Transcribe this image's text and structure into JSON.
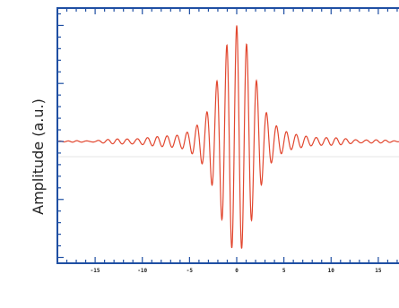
{
  "colors": {
    "axis": "#1f4fa3",
    "trace": "#e2472f"
  },
  "chart_data": {
    "type": "line",
    "title": "",
    "xlabel": "",
    "ylabel": "Amplitude (a.u.)",
    "xlim": [
      -19,
      19
    ],
    "ylim": [
      -1.05,
      1.15
    ],
    "x_ticks": [
      "-15",
      "-10",
      "-5",
      "0",
      "5",
      "10",
      "15"
    ],
    "x_tick_values": [
      -15,
      -10,
      -5,
      0,
      5,
      10,
      15
    ],
    "grid": false,
    "legend": "none",
    "series": [
      {
        "name": "",
        "envelope_peak": 1.0,
        "envelope_width": 2.6,
        "oscillation_frequency": 0.95,
        "x": [
          -18,
          -15,
          -12,
          -10,
          -8,
          -6,
          -5,
          -4,
          -3,
          -2,
          -1,
          0,
          1,
          2,
          3,
          4,
          5,
          6,
          8,
          10,
          12,
          15,
          18
        ],
        "y": [
          0.0,
          0.01,
          0.02,
          0.03,
          0.04,
          0.06,
          0.09,
          0.15,
          0.27,
          0.55,
          0.85,
          1.0,
          0.85,
          0.55,
          0.27,
          0.15,
          0.09,
          0.06,
          0.04,
          0.03,
          0.02,
          0.01,
          0.0
        ]
      }
    ]
  }
}
